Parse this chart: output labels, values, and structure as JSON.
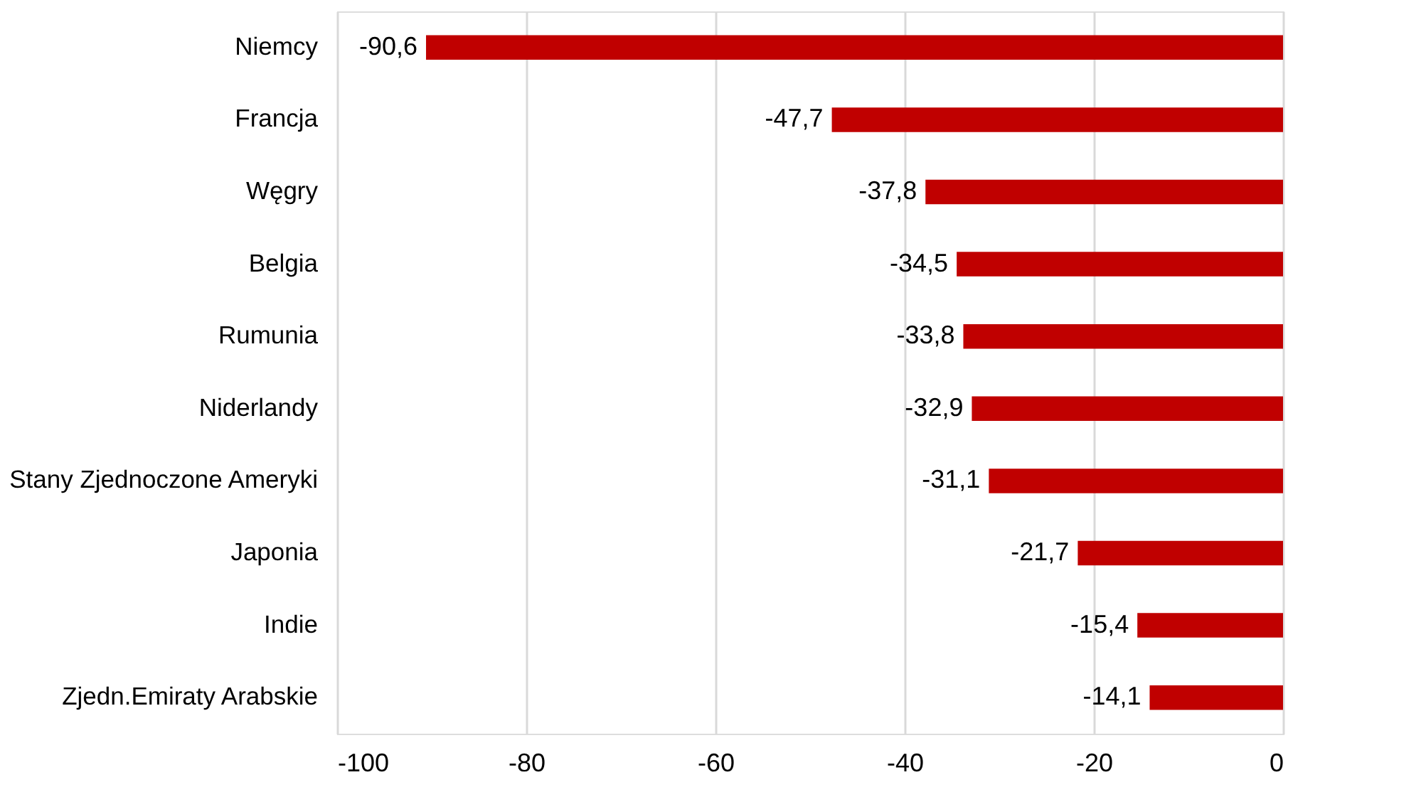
{
  "chart_data": {
    "type": "bar",
    "orientation": "horizontal",
    "categories": [
      "Niemcy",
      "Francja",
      "Węgry",
      "Belgia",
      "Rumunia",
      "Niderlandy",
      "Stany Zjednoczone Ameryki",
      "Japonia",
      "Indie",
      "Zjedn.Emiraty Arabskie"
    ],
    "values": [
      -90.6,
      -47.7,
      -37.8,
      -34.5,
      -33.8,
      -32.9,
      -31.1,
      -21.7,
      -15.4,
      -14.1
    ],
    "value_labels": [
      "-90,6",
      "-47,7",
      "-37,8",
      "-34,5",
      "-33,8",
      "-32,9",
      "-31,1",
      "-21,7",
      "-15,4",
      "-14,1"
    ],
    "color": "#c00000",
    "xlim": [
      -100,
      0
    ],
    "xticks": [
      -100,
      -80,
      -60,
      -40,
      -20,
      0
    ],
    "grid": "x"
  }
}
